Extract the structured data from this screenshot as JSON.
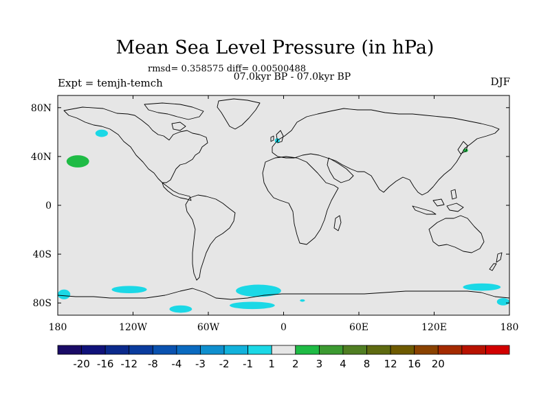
{
  "header": {
    "title": "Mean Sea Level Pressure (in hPa)",
    "stats": "rmsd= 0.358575 diff= 0.00500488",
    "period": "07.0kyr BP - 07.0kyr BP",
    "expt": "Expt = temjh-temch",
    "season": "DJF"
  },
  "chart_data": {
    "type": "heatmap",
    "title": "Mean Sea Level Pressure (in hPa)",
    "subtitle": "07.0kyr BP - 07.0kyr BP",
    "projection": "cylindrical equidistant world map",
    "x_range": [
      -180,
      180
    ],
    "y_range": [
      -90,
      90
    ],
    "x_ticks": [
      {
        "value": -180,
        "label": "180"
      },
      {
        "value": -120,
        "label": "120W"
      },
      {
        "value": -60,
        "label": "60W"
      },
      {
        "value": 0,
        "label": "0"
      },
      {
        "value": 60,
        "label": "60E"
      },
      {
        "value": 120,
        "label": "120E"
      },
      {
        "value": 180,
        "label": "180"
      }
    ],
    "y_ticks": [
      {
        "value": 80,
        "label": "80N"
      },
      {
        "value": 40,
        "label": "40N"
      },
      {
        "value": 0,
        "label": "0"
      },
      {
        "value": -40,
        "label": "40S"
      },
      {
        "value": -80,
        "label": "80S"
      }
    ],
    "colorbar": {
      "colors": [
        "#1a0b66",
        "#10127a",
        "#0b2a8c",
        "#0a3c9e",
        "#0a52b0",
        "#0a6ac0",
        "#0f8fce",
        "#12b2dc",
        "#1bd8e6",
        "#e6e6e6",
        "#1fbb45",
        "#3c9a31",
        "#507e22",
        "#5e6a10",
        "#6e5a00",
        "#8a4200",
        "#a42a00",
        "#b81200",
        "#d20000"
      ],
      "labels": [
        "-20",
        "-16",
        "-12",
        "-8",
        "-4",
        "-3",
        "-2",
        "-1",
        "1",
        "2",
        "3",
        "4",
        "8",
        "12",
        "16",
        "20"
      ],
      "label_boundary_index": [
        1,
        2,
        3,
        4,
        5,
        6,
        7,
        8,
        9,
        10,
        11,
        12,
        13,
        14,
        15,
        16
      ]
    },
    "anomaly_regions": [
      {
        "name": "north-pacific-high",
        "lon": -164,
        "lat": 36,
        "dlon": 9,
        "dlat": 5,
        "class": "2"
      },
      {
        "name": "bering-low",
        "lon": -145,
        "lat": 59,
        "dlon": 5,
        "dlat": 3,
        "class": "-1"
      },
      {
        "name": "ireland-low",
        "lon": -5,
        "lat": 53,
        "dlon": 2,
        "dlat": 2,
        "class": "-1"
      },
      {
        "name": "japan-high",
        "lon": 145,
        "lat": 45,
        "dlon": 2,
        "dlat": 1.5,
        "class": "2"
      },
      {
        "name": "southern-ocean-low-1",
        "lon": -123,
        "lat": -69,
        "dlon": 14,
        "dlat": 3,
        "class": "-1"
      },
      {
        "name": "southern-ocean-low-2",
        "lon": -20,
        "lat": -70,
        "dlon": 18,
        "dlat": 5,
        "class": "-1"
      },
      {
        "name": "southern-ocean-low-3",
        "lon": 158,
        "lat": -67,
        "dlon": 15,
        "dlat": 3,
        "class": "-1"
      },
      {
        "name": "southern-ocean-low-4",
        "lon": -175,
        "lat": -73,
        "dlon": 5,
        "dlat": 4,
        "class": "-1"
      },
      {
        "name": "antarctic-low-1",
        "lon": -82,
        "lat": -85,
        "dlon": 9,
        "dlat": 3,
        "class": "-1"
      },
      {
        "name": "antarctic-low-2",
        "lon": -25,
        "lat": -82,
        "dlon": 18,
        "dlat": 3,
        "class": "-1"
      },
      {
        "name": "antarctic-low-3",
        "lon": 175,
        "lat": -79,
        "dlon": 5,
        "dlat": 3,
        "class": "-1"
      },
      {
        "name": "antarctic-low-4",
        "lon": 15,
        "lat": -78,
        "dlon": 2,
        "dlat": 1,
        "class": "-1"
      }
    ]
  }
}
